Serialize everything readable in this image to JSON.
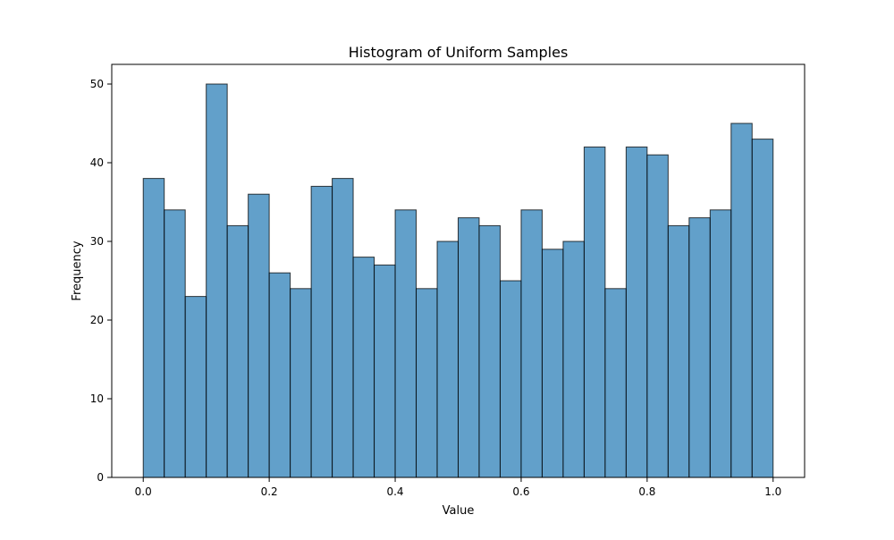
{
  "chart_data": {
    "type": "bar",
    "title": "Histogram of Uniform Samples",
    "xlabel": "Value",
    "ylabel": "Frequency",
    "bin_range": [
      0.0,
      1.0
    ],
    "bin_count": 30,
    "values": [
      38,
      34,
      23,
      50,
      32,
      36,
      26,
      24,
      37,
      38,
      28,
      27,
      34,
      24,
      30,
      33,
      32,
      25,
      34,
      29,
      30,
      42,
      24,
      42,
      41,
      32,
      33,
      34,
      45,
      43
    ],
    "xlim": [
      -0.05,
      1.05
    ],
    "ylim": [
      0,
      52.5
    ],
    "xticks": [
      0.0,
      0.2,
      0.4,
      0.6,
      0.8,
      1.0
    ],
    "xtick_labels": [
      "0.0",
      "0.2",
      "0.4",
      "0.6",
      "0.8",
      "1.0"
    ],
    "yticks": [
      0,
      10,
      20,
      30,
      40,
      50
    ],
    "ytick_labels": [
      "0",
      "10",
      "20",
      "30",
      "40",
      "50"
    ],
    "grid": false,
    "legend": "none",
    "bar_color": "#1f77b4",
    "bar_alpha": 0.7,
    "edge_color": "#000000"
  }
}
